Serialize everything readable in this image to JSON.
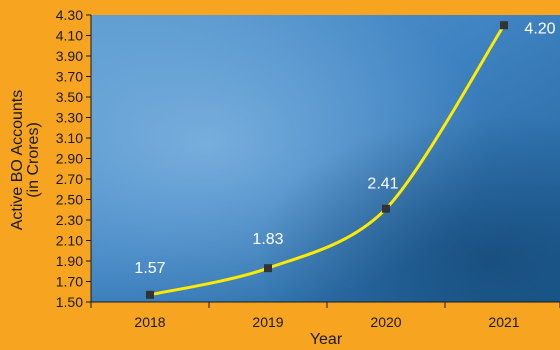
{
  "chart_data": {
    "type": "line",
    "categories": [
      "2018",
      "2019",
      "2020",
      "2021"
    ],
    "values": [
      1.57,
      1.83,
      2.41,
      4.2
    ],
    "data_labels": [
      "1.57",
      "1.83",
      "2.41",
      "4.20"
    ],
    "xlabel": "Year",
    "ylabel_lines": [
      "Active BO Accounts",
      "(in Crores)"
    ],
    "ylim": [
      1.5,
      4.3
    ],
    "yticks": [
      "1.50",
      "1.70",
      "1.90",
      "2.10",
      "2.30",
      "2.50",
      "2.70",
      "2.90",
      "3.10",
      "3.30",
      "3.50",
      "3.70",
      "3.90",
      "4.10",
      "4.30"
    ],
    "grid": false,
    "colors": {
      "background": "#f7a520",
      "plot_bg_light": "#5f9fd3",
      "plot_bg_dark": "#17507f",
      "line": "#ffea00",
      "marker": "#333333",
      "data_label": "#ffffff",
      "axis_text": "#1a1a1a"
    }
  }
}
